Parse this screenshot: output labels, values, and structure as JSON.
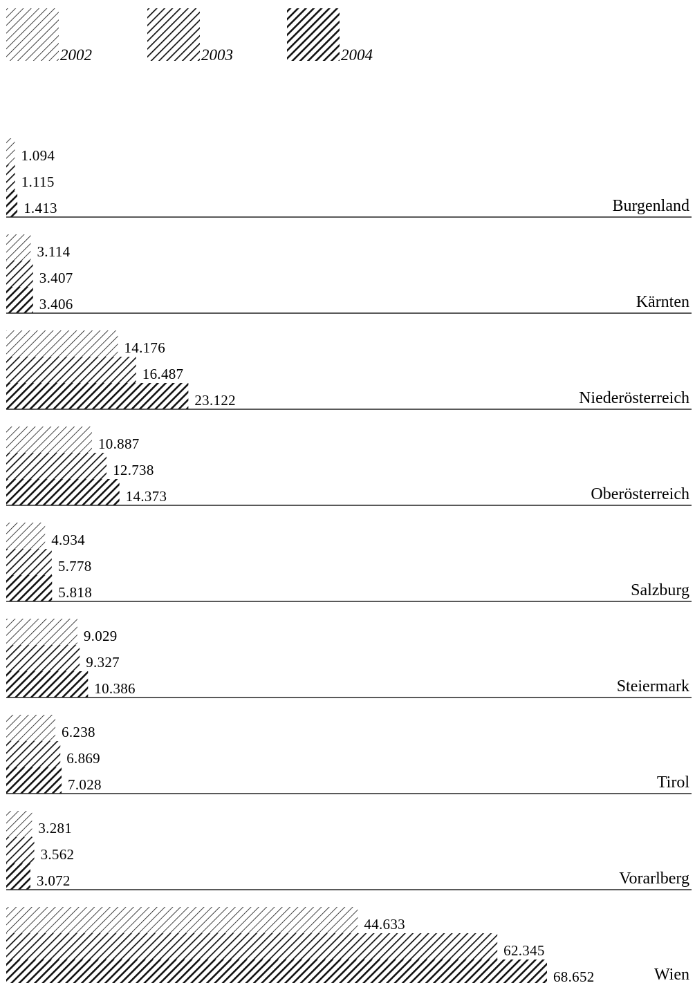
{
  "chart_data": {
    "type": "bar",
    "orientation": "horizontal",
    "legend_placement": "top-left",
    "grid": false,
    "series": [
      {
        "name": "2002",
        "values": [
          1094,
          3114,
          14176,
          10887,
          4934,
          9029,
          6238,
          3281,
          44633
        ],
        "labels": [
          "1.094",
          "3.114",
          "14.176",
          "10.887",
          "4.934",
          "9.029",
          "6.238",
          "3.281",
          "44.633"
        ]
      },
      {
        "name": "2003",
        "values": [
          1115,
          3407,
          16487,
          12738,
          5778,
          9327,
          6869,
          3562,
          62345
        ],
        "labels": [
          "1.115",
          "3.407",
          "16.487",
          "12.738",
          "5.778",
          "9.327",
          "6.869",
          "3.562",
          "62.345"
        ]
      },
      {
        "name": "2004",
        "values": [
          1413,
          3406,
          23122,
          14373,
          5818,
          10386,
          7028,
          3072,
          68652
        ],
        "labels": [
          "1.413",
          "3.406",
          "23.122",
          "14.373",
          "5.818",
          "10.386",
          "7.028",
          "3.072",
          "68.652"
        ]
      }
    ],
    "categories": [
      "Burgenland",
      "Kärnten",
      "Niederösterreich",
      "Oberösterreich",
      "Salzburg",
      "Steiermark",
      "Tirol",
      "Vorarlberg",
      "Wien"
    ],
    "xlim": [
      0,
      68652
    ],
    "title": "",
    "xlabel": "",
    "ylabel": ""
  }
}
